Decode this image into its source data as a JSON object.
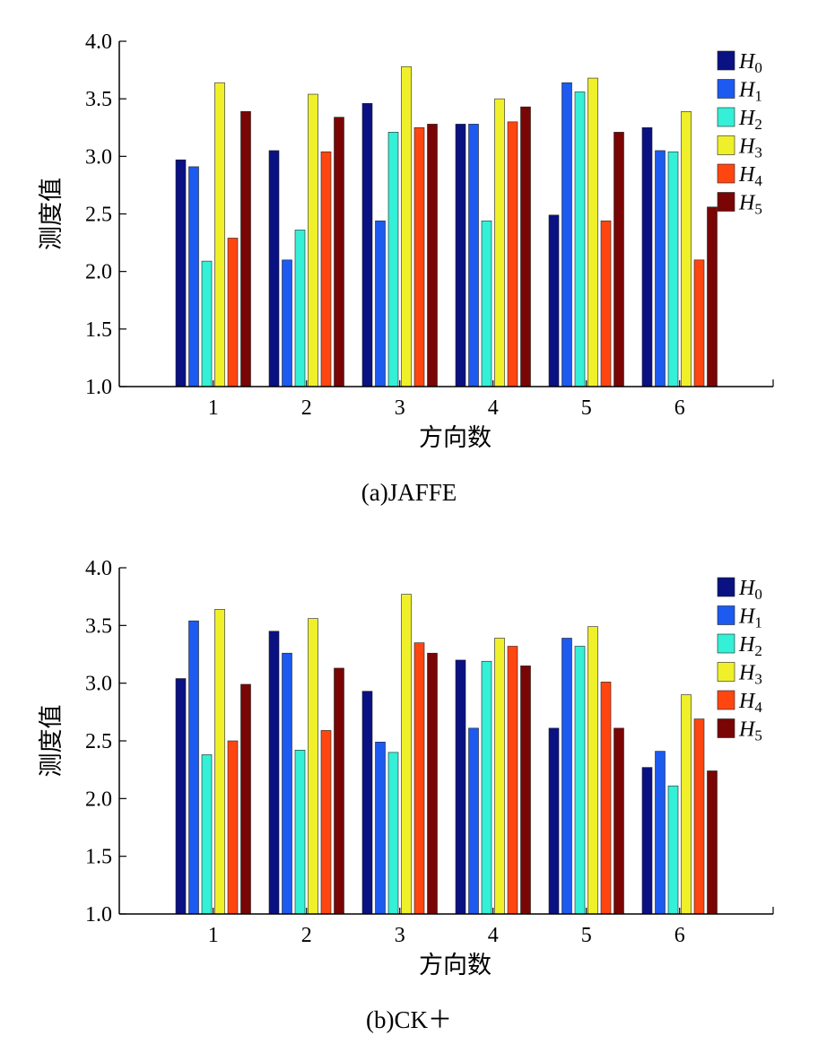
{
  "chart_data": [
    {
      "type": "bar",
      "caption": "(a)JAFFE",
      "xlabel": "方向数",
      "ylabel": "测度值",
      "ylim": [
        1.0,
        4.0
      ],
      "yticks": [
        "1.0",
        "1.5",
        "2.0",
        "2.5",
        "3.0",
        "3.5",
        "4.0"
      ],
      "categories": [
        "1",
        "2",
        "3",
        "4",
        "5",
        "6"
      ],
      "legend_position": "top-right",
      "series": [
        {
          "name": "H",
          "sub": "0",
          "color": "#0a1183",
          "values": [
            2.97,
            3.05,
            3.46,
            3.28,
            2.49,
            3.25
          ]
        },
        {
          "name": "H",
          "sub": "1",
          "color": "#1c5af0",
          "values": [
            2.91,
            2.1,
            2.44,
            3.28,
            3.64,
            3.05
          ]
        },
        {
          "name": "H",
          "sub": "2",
          "color": "#33f0d6",
          "values": [
            2.09,
            2.36,
            3.21,
            2.44,
            3.56,
            3.04
          ]
        },
        {
          "name": "H",
          "sub": "3",
          "color": "#f0f02a",
          "values": [
            3.64,
            3.54,
            3.78,
            3.5,
            3.68,
            3.39
          ]
        },
        {
          "name": "H",
          "sub": "4",
          "color": "#ff4611",
          "values": [
            2.29,
            3.04,
            3.25,
            3.3,
            2.44,
            2.1
          ]
        },
        {
          "name": "H",
          "sub": "5",
          "color": "#7a0505",
          "values": [
            3.39,
            3.34,
            3.28,
            3.43,
            3.21,
            2.56
          ]
        }
      ]
    },
    {
      "type": "bar",
      "caption": "(b)CK＋",
      "xlabel": "方向数",
      "ylabel": "测度值",
      "ylim": [
        1.0,
        4.0
      ],
      "yticks": [
        "1.0",
        "1.5",
        "2.0",
        "2.5",
        "3.0",
        "3.5",
        "4.0"
      ],
      "categories": [
        "1",
        "2",
        "3",
        "4",
        "5",
        "6"
      ],
      "legend_position": "top-right",
      "series": [
        {
          "name": "H",
          "sub": "0",
          "color": "#0a1183",
          "values": [
            3.04,
            3.45,
            2.93,
            3.2,
            2.61,
            2.27
          ]
        },
        {
          "name": "H",
          "sub": "1",
          "color": "#1c5af0",
          "values": [
            3.54,
            3.26,
            2.49,
            2.61,
            3.39,
            2.41
          ]
        },
        {
          "name": "H",
          "sub": "2",
          "color": "#33f0d6",
          "values": [
            2.38,
            2.42,
            2.4,
            3.19,
            3.32,
            2.11
          ]
        },
        {
          "name": "H",
          "sub": "3",
          "color": "#f0f02a",
          "values": [
            3.64,
            3.56,
            3.77,
            3.39,
            3.49,
            2.9
          ]
        },
        {
          "name": "H",
          "sub": "4",
          "color": "#ff4611",
          "values": [
            2.5,
            2.59,
            3.35,
            3.32,
            3.01,
            2.69
          ]
        },
        {
          "name": "H",
          "sub": "5",
          "color": "#7a0505",
          "values": [
            2.99,
            3.13,
            3.26,
            3.15,
            2.61,
            2.24
          ]
        }
      ]
    }
  ]
}
